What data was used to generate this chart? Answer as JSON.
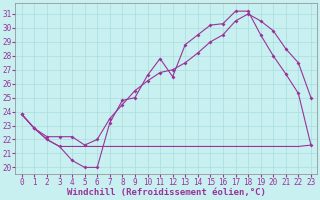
{
  "title": "Windchill (Refroidissement éolien,°C)",
  "bg_color": "#c8f0f0",
  "line_color": "#993399",
  "xlim": [
    -0.5,
    23.5
  ],
  "ylim": [
    19.5,
    31.8
  ],
  "xticks": [
    0,
    1,
    2,
    3,
    4,
    5,
    6,
    7,
    8,
    9,
    10,
    11,
    12,
    13,
    14,
    15,
    16,
    17,
    18,
    19,
    20,
    21,
    22,
    23
  ],
  "yticks": [
    20,
    21,
    22,
    23,
    24,
    25,
    26,
    27,
    28,
    29,
    30,
    31
  ],
  "line1_x": [
    0,
    1,
    2,
    3,
    4,
    5,
    6,
    7,
    8,
    9,
    10,
    11,
    12,
    13,
    14,
    15,
    16,
    17,
    18,
    19,
    20,
    21,
    22,
    23
  ],
  "line1_y": [
    23.8,
    22.8,
    22.0,
    21.5,
    20.5,
    20.0,
    20.0,
    23.2,
    24.8,
    25.0,
    26.6,
    27.8,
    26.5,
    28.8,
    29.5,
    30.2,
    30.3,
    31.2,
    31.2,
    29.5,
    28.0,
    26.7,
    25.3,
    21.6
  ],
  "line2_x": [
    0,
    1,
    2,
    3,
    4,
    5,
    6,
    7,
    8,
    9,
    10,
    11,
    12,
    13,
    14,
    15,
    16,
    17,
    18,
    19,
    20,
    21,
    22,
    23
  ],
  "line2_y": [
    23.8,
    22.8,
    22.0,
    21.5,
    21.5,
    21.5,
    21.5,
    21.5,
    21.5,
    21.5,
    21.5,
    21.5,
    21.5,
    21.5,
    21.5,
    21.5,
    21.5,
    21.5,
    21.5,
    21.5,
    21.5,
    21.5,
    21.5,
    21.6
  ],
  "line3_x": [
    0,
    1,
    2,
    3,
    4,
    5,
    6,
    7,
    8,
    9,
    10,
    11,
    12,
    13,
    14,
    15,
    16,
    17,
    18,
    19,
    20,
    21,
    22,
    23
  ],
  "line3_y": [
    23.8,
    22.8,
    22.2,
    22.2,
    22.2,
    21.6,
    22.0,
    23.5,
    24.5,
    25.5,
    26.2,
    26.8,
    27.0,
    27.5,
    28.2,
    29.0,
    29.5,
    30.5,
    31.0,
    30.5,
    29.8,
    28.5,
    27.5,
    25.0
  ],
  "grid_color": "#aadddd",
  "tick_fontsize": 5.5,
  "label_fontsize": 6.5
}
